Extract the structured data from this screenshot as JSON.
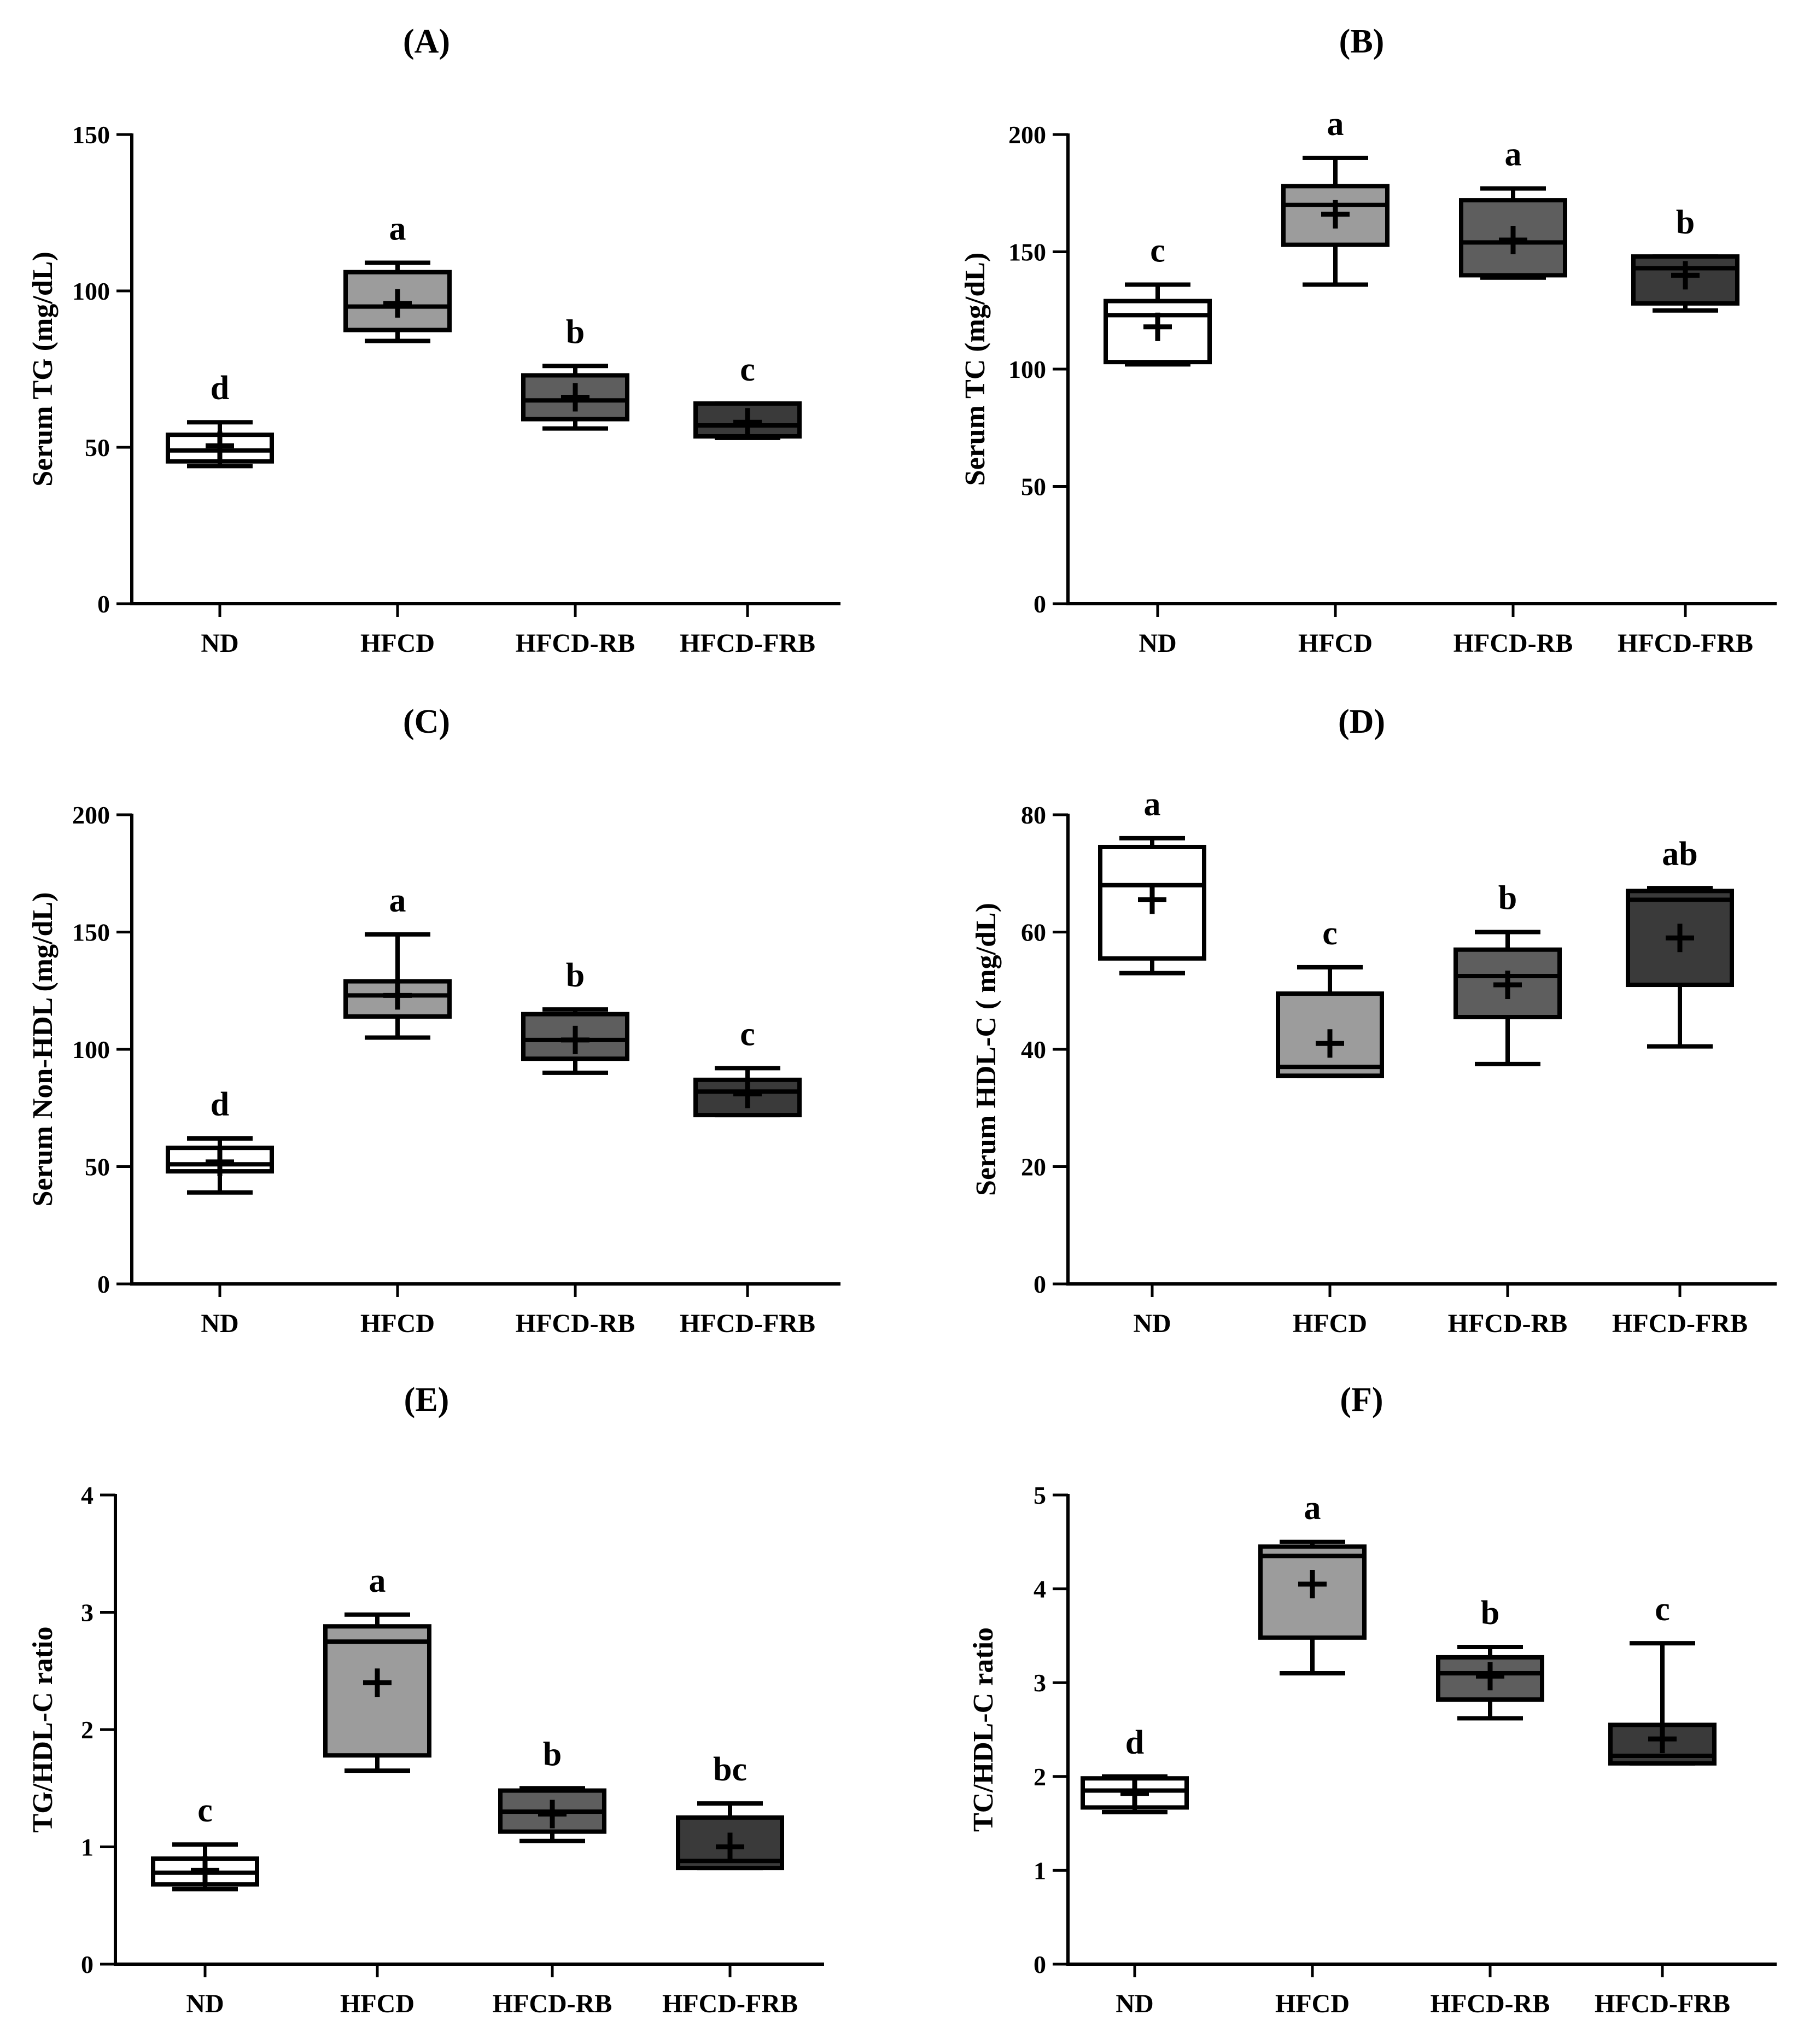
{
  "chart_data": [
    {
      "type": "boxplot",
      "title": "(A)",
      "ylabel": "Serum TG (mg/dL)",
      "xlabel": "",
      "ylim": [
        0,
        150
      ],
      "yticks": [
        0,
        50,
        100,
        150
      ],
      "categories": [
        "ND",
        "HFCD",
        "HFCD-RB",
        "HFCD-FRB"
      ],
      "fills": [
        "#ffffff",
        "#9c9c9c",
        "#5e5e5e",
        "#3a3a3a"
      ],
      "boxes": [
        {
          "min": 44,
          "q1": 45.5,
          "median": 49,
          "q3": 54,
          "max": 58,
          "mean": 50.5,
          "sig": "d"
        },
        {
          "min": 84,
          "q1": 87.5,
          "median": 95,
          "q3": 106,
          "max": 109,
          "mean": 96,
          "sig": "a"
        },
        {
          "min": 56,
          "q1": 59,
          "median": 65,
          "q3": 73,
          "max": 76,
          "mean": 66,
          "sig": "b"
        },
        {
          "min": 53,
          "q1": 53.5,
          "median": 57,
          "q3": 64,
          "max": 64,
          "mean": 58,
          "sig": "c"
        }
      ]
    },
    {
      "type": "boxplot",
      "title": "(B)",
      "ylabel": "Serum TC (mg/dL)",
      "xlabel": "",
      "ylim": [
        0,
        200
      ],
      "yticks": [
        0,
        50,
        100,
        150,
        200
      ],
      "categories": [
        "ND",
        "HFCD",
        "HFCD-RB",
        "HFCD-FRB"
      ],
      "fills": [
        "#ffffff",
        "#9c9c9c",
        "#5e5e5e",
        "#3a3a3a"
      ],
      "boxes": [
        {
          "min": 102,
          "q1": 103,
          "median": 123,
          "q3": 129,
          "max": 136,
          "mean": 118,
          "sig": "c"
        },
        {
          "min": 136,
          "q1": 153,
          "median": 170,
          "q3": 178,
          "max": 190,
          "mean": 166,
          "sig": "a"
        },
        {
          "min": 139,
          "q1": 140,
          "median": 154,
          "q3": 172,
          "max": 177,
          "mean": 155,
          "sig": "a"
        },
        {
          "min": 125,
          "q1": 128,
          "median": 143,
          "q3": 148,
          "max": 148,
          "mean": 140,
          "sig": "b"
        }
      ]
    },
    {
      "type": "boxplot",
      "title": "(C)",
      "ylabel": "Serum Non-HDL (mg/dL)",
      "xlabel": "",
      "ylim": [
        0,
        200
      ],
      "yticks": [
        0,
        50,
        100,
        150,
        200
      ],
      "categories": [
        "ND",
        "HFCD",
        "HFCD-RB",
        "HFCD-FRB"
      ],
      "fills": [
        "#ffffff",
        "#9c9c9c",
        "#5e5e5e",
        "#3a3a3a"
      ],
      "boxes": [
        {
          "min": 39,
          "q1": 48,
          "median": 51,
          "q3": 58,
          "max": 62,
          "mean": 52,
          "sig": "d"
        },
        {
          "min": 105,
          "q1": 114,
          "median": 123,
          "q3": 129,
          "max": 149,
          "mean": 123,
          "sig": "a"
        },
        {
          "min": 90,
          "q1": 96,
          "median": 104,
          "q3": 115,
          "max": 117,
          "mean": 104,
          "sig": "b"
        },
        {
          "min": 72,
          "q1": 72,
          "median": 82,
          "q3": 87,
          "max": 92,
          "mean": 81,
          "sig": "c"
        }
      ]
    },
    {
      "type": "boxplot",
      "title": "(D)",
      "ylabel": "Serum HDL-C ( mg/dL)",
      "xlabel": "",
      "ylim": [
        0,
        80
      ],
      "yticks": [
        0,
        20,
        40,
        60,
        80
      ],
      "categories": [
        "ND",
        "HFCD",
        "HFCD-RB",
        "HFCD-FRB"
      ],
      "fills": [
        "#ffffff",
        "#9c9c9c",
        "#5e5e5e",
        "#3a3a3a"
      ],
      "boxes": [
        {
          "min": 53,
          "q1": 55.5,
          "median": 68,
          "q3": 74.5,
          "max": 76,
          "mean": 65.5,
          "sig": "a"
        },
        {
          "min": 35.5,
          "q1": 35.5,
          "median": 37,
          "q3": 49.5,
          "max": 54,
          "mean": 41,
          "sig": "c"
        },
        {
          "min": 37.5,
          "q1": 45.5,
          "median": 52.5,
          "q3": 57,
          "max": 60,
          "mean": 51,
          "sig": "b"
        },
        {
          "min": 40.5,
          "q1": 51,
          "median": 65.5,
          "q3": 67,
          "max": 67.5,
          "mean": 59,
          "sig": "ab"
        }
      ]
    },
    {
      "type": "boxplot",
      "title": "(E)",
      "ylabel": "TG/HDL-C ratio",
      "xlabel": "",
      "ylim": [
        0,
        4
      ],
      "yticks": [
        0,
        1,
        2,
        3,
        4
      ],
      "categories": [
        "ND",
        "HFCD",
        "HFCD-RB",
        "HFCD-FRB"
      ],
      "fills": [
        "#ffffff",
        "#9c9c9c",
        "#5e5e5e",
        "#3a3a3a"
      ],
      "boxes": [
        {
          "min": 0.64,
          "q1": 0.68,
          "median": 0.78,
          "q3": 0.9,
          "max": 1.02,
          "mean": 0.8,
          "sig": "c"
        },
        {
          "min": 1.65,
          "q1": 1.78,
          "median": 2.75,
          "q3": 2.88,
          "max": 2.98,
          "mean": 2.4,
          "sig": "a"
        },
        {
          "min": 1.05,
          "q1": 1.13,
          "median": 1.3,
          "q3": 1.48,
          "max": 1.5,
          "mean": 1.28,
          "sig": "b"
        },
        {
          "min": 0.82,
          "q1": 0.82,
          "median": 0.88,
          "q3": 1.25,
          "max": 1.37,
          "mean": 1.0,
          "sig": "bc"
        }
      ]
    },
    {
      "type": "boxplot",
      "title": "(F)",
      "ylabel": "TC/HDL-C ratio",
      "xlabel": "",
      "ylim": [
        0,
        5
      ],
      "yticks": [
        0,
        1,
        2,
        3,
        4,
        5
      ],
      "categories": [
        "ND",
        "HFCD",
        "HFCD-RB",
        "HFCD-FRB"
      ],
      "fills": [
        "#ffffff",
        "#9c9c9c",
        "#5e5e5e",
        "#3a3a3a"
      ],
      "boxes": [
        {
          "min": 1.62,
          "q1": 1.67,
          "median": 1.85,
          "q3": 1.98,
          "max": 2.0,
          "mean": 1.82,
          "sig": "d"
        },
        {
          "min": 3.1,
          "q1": 3.48,
          "median": 4.35,
          "q3": 4.45,
          "max": 4.5,
          "mean": 4.05,
          "sig": "a"
        },
        {
          "min": 2.62,
          "q1": 2.82,
          "median": 3.1,
          "q3": 3.27,
          "max": 3.38,
          "mean": 3.07,
          "sig": "b"
        },
        {
          "min": 2.14,
          "q1": 2.14,
          "median": 2.22,
          "q3": 2.55,
          "max": 3.42,
          "mean": 2.4,
          "sig": "c"
        }
      ]
    }
  ]
}
